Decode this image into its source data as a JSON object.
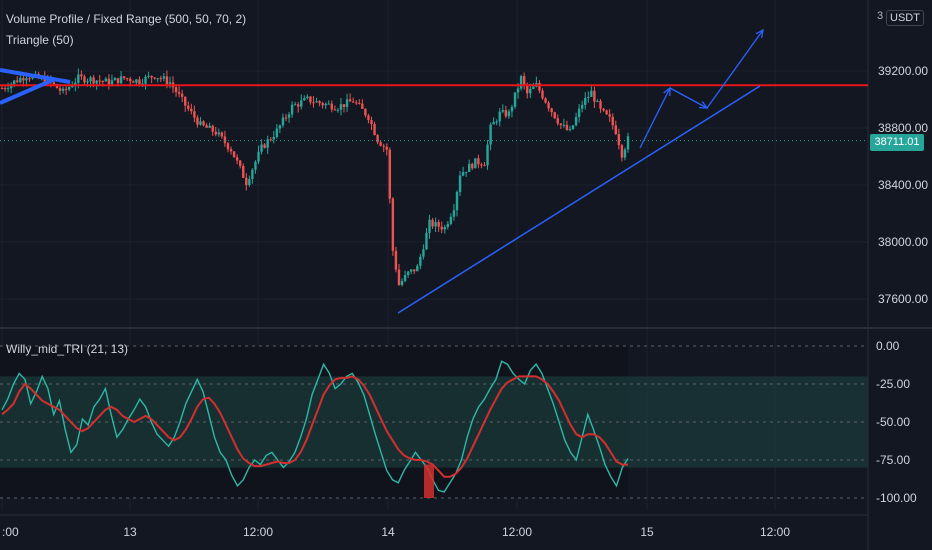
{
  "indicators": {
    "volume_profile": "Volume Profile / Fixed Range (500, 50, 70, 2)",
    "triangle": "Triangle (50)",
    "oscillator": "Willy_mid_TRI (21, 13)"
  },
  "currency_badge": "USDT",
  "top_price_fragment": "3",
  "current_price": "38711.01",
  "colors": {
    "background": "#131722",
    "up": "#26a69a",
    "down": "#ef5350",
    "resistance": "#e8151b",
    "trendline": "#2962ff",
    "osc_fast": "#2eb8a6",
    "osc_slow": "#d32f2f",
    "band": "#1b3a3b"
  },
  "chart_data": [
    {
      "type": "candlestick",
      "y_ticks": [
        "39200.00",
        "38800.00",
        "38400.00",
        "38000.00",
        "37600.00"
      ],
      "ylim": [
        37400,
        39650
      ],
      "x_ticks": [
        ":00",
        "13",
        "12:00",
        "14",
        "12:00",
        "15",
        "12:00"
      ],
      "resistance_level": 39100,
      "current_price": 38711.01,
      "price_path": [
        [
          0,
          39080
        ],
        [
          8,
          39170
        ],
        [
          15,
          39130
        ],
        [
          20,
          39050
        ],
        [
          25,
          39150
        ],
        [
          30,
          39140
        ],
        [
          35,
          39120
        ],
        [
          40,
          39150
        ],
        [
          45,
          39130
        ],
        [
          50,
          39170
        ],
        [
          55,
          39120
        ],
        [
          60,
          38960
        ],
        [
          65,
          38820
        ],
        [
          70,
          38770
        ],
        [
          75,
          38650
        ],
        [
          80,
          38420
        ],
        [
          85,
          38660
        ],
        [
          90,
          38780
        ],
        [
          95,
          38950
        ],
        [
          100,
          39000
        ],
        [
          105,
          38970
        ],
        [
          110,
          38950
        ],
        [
          115,
          38990
        ],
        [
          120,
          38880
        ],
        [
          123,
          38720
        ],
        [
          126,
          38650
        ],
        [
          128,
          37940
        ],
        [
          130,
          37700
        ],
        [
          133,
          37780
        ],
        [
          136,
          37820
        ],
        [
          140,
          38130
        ],
        [
          145,
          38100
        ],
        [
          148,
          38250
        ],
        [
          150,
          38480
        ],
        [
          155,
          38560
        ],
        [
          158,
          38560
        ],
        [
          160,
          38800
        ],
        [
          163,
          38900
        ],
        [
          166,
          38900
        ],
        [
          170,
          39150
        ],
        [
          172,
          39040
        ],
        [
          175,
          39100
        ],
        [
          180,
          38920
        ],
        [
          183,
          38820
        ],
        [
          186,
          38770
        ],
        [
          190,
          38970
        ],
        [
          193,
          39050
        ],
        [
          196,
          38920
        ],
        [
          199,
          38860
        ],
        [
          201,
          38780
        ],
        [
          203,
          38620
        ],
        [
          205,
          38720
        ]
      ],
      "candle_count": 206,
      "projection_arrows": "drawn as three blue arrows above the trendline"
    },
    {
      "type": "line",
      "title": "Willy_mid_TRI (21, 13)",
      "y_ticks": [
        "0.00",
        "-25.00",
        "-50.00",
        "-75.00",
        "-100.00"
      ],
      "ylim": [
        -100,
        0
      ],
      "band": [
        -80,
        -20
      ],
      "fast_series": [
        -42,
        -35,
        -25,
        -18,
        -22,
        -38,
        -30,
        -20,
        -28,
        -45,
        -36,
        -55,
        -70,
        -65,
        -48,
        -52,
        -40,
        -35,
        -28,
        -45,
        -60,
        -55,
        -48,
        -42,
        -35,
        -40,
        -50,
        -58,
        -62,
        -66,
        -60,
        -50,
        -38,
        -30,
        -22,
        -30,
        -45,
        -60,
        -70,
        -75,
        -85,
        -92,
        -88,
        -80,
        -75,
        -78,
        -72,
        -70,
        -75,
        -80,
        -76,
        -70,
        -60,
        -48,
        -32,
        -22,
        -12,
        -18,
        -28,
        -25,
        -20,
        -18,
        -24,
        -32,
        -45,
        -58,
        -70,
        -82,
        -88,
        -90,
        -82,
        -76,
        -70,
        -75,
        -80,
        -88,
        -95,
        -96,
        -90,
        -84,
        -75,
        -60,
        -48,
        -40,
        -35,
        -28,
        -22,
        -10,
        -12,
        -18,
        -22,
        -25,
        -16,
        -12,
        -18,
        -28,
        -38,
        -50,
        -62,
        -70,
        -75,
        -60,
        -45,
        -55,
        -66,
        -78,
        -86,
        -92,
        -80,
        -74
      ],
      "slow_series": [
        -45,
        -42,
        -38,
        -30,
        -25,
        -28,
        -32,
        -36,
        -38,
        -40,
        -42,
        -46,
        -50,
        -54,
        -56,
        -54,
        -50,
        -46,
        -42,
        -40,
        -42,
        -46,
        -48,
        -50,
        -48,
        -46,
        -48,
        -52,
        -56,
        -60,
        -62,
        -60,
        -55,
        -48,
        -40,
        -35,
        -34,
        -38,
        -44,
        -52,
        -60,
        -68,
        -74,
        -77,
        -79,
        -79,
        -78,
        -77,
        -76,
        -77,
        -77,
        -75,
        -70,
        -62,
        -52,
        -42,
        -32,
        -26,
        -22,
        -21,
        -21,
        -20,
        -22,
        -26,
        -32,
        -40,
        -48,
        -56,
        -62,
        -68,
        -72,
        -74,
        -75,
        -75,
        -76,
        -78,
        -82,
        -86,
        -86,
        -84,
        -80,
        -74,
        -66,
        -58,
        -50,
        -42,
        -35,
        -28,
        -24,
        -22,
        -20,
        -20,
        -20,
        -20,
        -22,
        -25,
        -30,
        -36,
        -44,
        -52,
        -58,
        -60,
        -58,
        -58,
        -60,
        -64,
        -70,
        -76,
        -78,
        -78
      ],
      "x_ticks": [
        ":00",
        "13",
        "12:00",
        "14",
        "12:00",
        "15",
        "12:00"
      ]
    }
  ]
}
